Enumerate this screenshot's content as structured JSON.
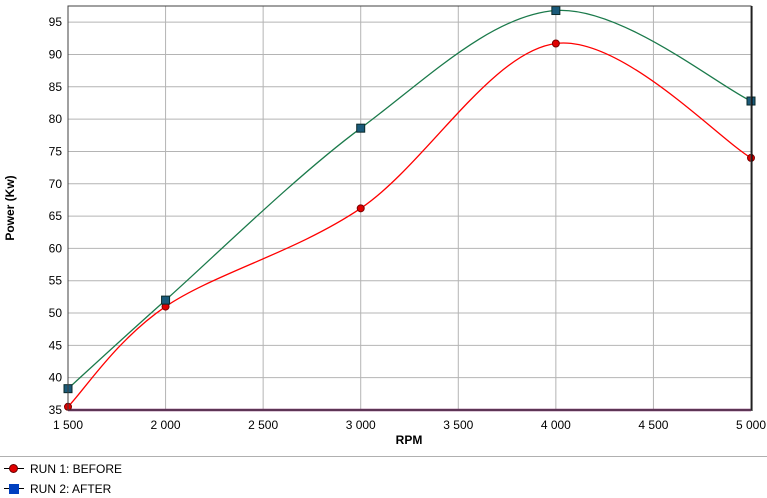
{
  "chart_data": {
    "type": "line",
    "xlabel": "RPM",
    "ylabel": "Power (Kw)",
    "xlim": [
      1500,
      5000
    ],
    "ylim": [
      35,
      97.5
    ],
    "x_ticks": [
      1500,
      2000,
      2500,
      3000,
      3500,
      4000,
      4500,
      5000
    ],
    "x_tick_labels": [
      "1 500",
      "2 000",
      "2 500",
      "3 000",
      "3 500",
      "4 000",
      "4 500",
      "5 000"
    ],
    "y_ticks": [
      35,
      40,
      45,
      50,
      55,
      60,
      65,
      70,
      75,
      80,
      85,
      90,
      95
    ],
    "y_tick_labels": [
      "35",
      "40",
      "45",
      "50",
      "55",
      "60",
      "65",
      "70",
      "75",
      "80",
      "85",
      "90",
      "95"
    ],
    "grid": true,
    "legend_position": "bottom-left",
    "series": [
      {
        "name": "RUN 1: BEFORE",
        "color": "#ff0000",
        "marker": "circle",
        "x": [
          1500,
          2000,
          3000,
          4000,
          5000
        ],
        "values": [
          35.5,
          51,
          66.2,
          91.7,
          74
        ]
      },
      {
        "name": "RUN 2: AFTER",
        "color": "#1b7a4b",
        "marker": "square",
        "x": [
          1500,
          2000,
          3000,
          4000,
          5000
        ],
        "values": [
          38.3,
          52,
          78.6,
          96.8,
          82.8
        ]
      }
    ]
  }
}
